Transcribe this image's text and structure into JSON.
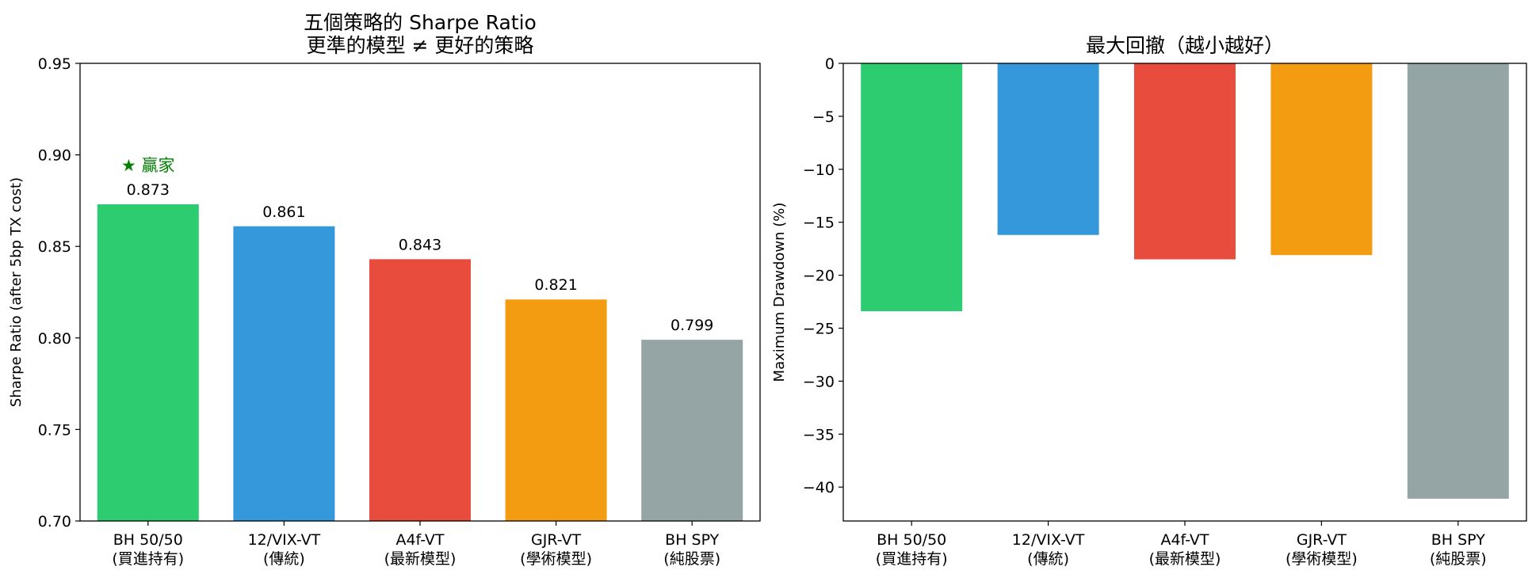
{
  "chart_data": [
    {
      "type": "bar",
      "title": [
        "五個策略的 Sharpe Ratio",
        "更準的模型 ≠ 更好的策略"
      ],
      "xlabel": "",
      "ylabel": "Sharpe Ratio (after 5bp TX cost)",
      "ylim": [
        0.7,
        0.95
      ],
      "yticks": [
        "0.70",
        "0.75",
        "0.80",
        "0.85",
        "0.90",
        "0.95"
      ],
      "categories": [
        [
          "BH 50/50",
          "(買進持有)"
        ],
        [
          "12/VIX-VT",
          "(傳統)"
        ],
        [
          "A4f-VT",
          "(最新模型)"
        ],
        [
          "GJR-VT",
          "(學術模型)"
        ],
        [
          "BH SPY",
          "(純股票)"
        ]
      ],
      "values": [
        0.873,
        0.861,
        0.843,
        0.821,
        0.799
      ],
      "value_labels": [
        "0.873",
        "0.861",
        "0.843",
        "0.821",
        "0.799"
      ],
      "colors": [
        "#2ecc71",
        "#3498db",
        "#e74c3c",
        "#f39c12",
        "#95a5a6"
      ],
      "annotation": {
        "text": "★ 贏家",
        "target_index": 0,
        "color": "#008000"
      },
      "grid": false
    },
    {
      "type": "bar",
      "title": [
        "最大回撤（越小越好）"
      ],
      "xlabel": "",
      "ylabel": "Maximum Drawdown (%)",
      "ylim": [
        -43.2,
        0
      ],
      "yticks": [
        "0",
        "−5",
        "−10",
        "−15",
        "−20",
        "−25",
        "−30",
        "−35",
        "−40"
      ],
      "categories": [
        [
          "BH 50/50",
          "(買進持有)"
        ],
        [
          "12/VIX-VT",
          "(傳統)"
        ],
        [
          "A4f-VT",
          "(最新模型)"
        ],
        [
          "GJR-VT",
          "(學術模型)"
        ],
        [
          "BH SPY",
          "(純股票)"
        ]
      ],
      "values": [
        -23.4,
        -16.2,
        -18.5,
        -18.1,
        -41.1
      ],
      "colors": [
        "#2ecc71",
        "#3498db",
        "#e74c3c",
        "#f39c12",
        "#95a5a6"
      ],
      "grid": false
    }
  ]
}
